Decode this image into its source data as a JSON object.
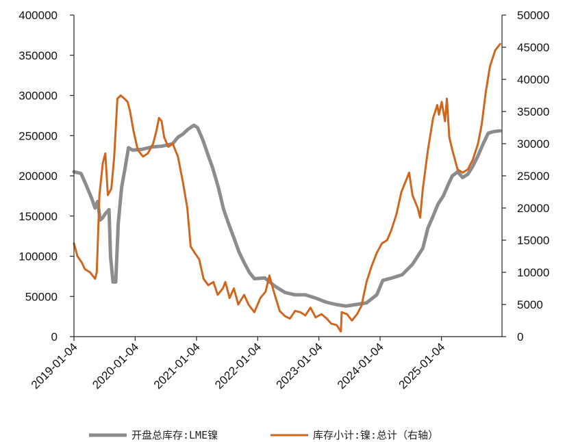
{
  "chart_data": {
    "type": "line",
    "x_range": [
      "2019-01-04",
      "2025-12-31"
    ],
    "x_ticks": [
      "2019-01-04",
      "2020-01-04",
      "2021-01-04",
      "2022-01-04",
      "2023-01-04",
      "2024-01-04",
      "2025-01-04"
    ],
    "y_left": {
      "min": 0,
      "max": 400000,
      "ticks": [
        "0",
        "50000",
        "100000",
        "150000",
        "200000",
        "250000",
        "300000",
        "350000",
        "400000"
      ]
    },
    "y_right": {
      "min": 0,
      "max": 50000,
      "ticks": [
        "0",
        "5000",
        "10000",
        "15000",
        "20000",
        "25000",
        "30000",
        "35000",
        "40000",
        "45000",
        "50000"
      ]
    },
    "grid": false,
    "legend_position": "bottom",
    "series": [
      {
        "name": "开盘总库存:LME镍",
        "axis": "left",
        "color": "#8c8c8c",
        "points": [
          [
            "2019-01-04",
            205000
          ],
          [
            "2019-02-15",
            203000
          ],
          [
            "2019-03-15",
            190000
          ],
          [
            "2019-04-20",
            172000
          ],
          [
            "2019-05-10",
            160000
          ],
          [
            "2019-05-25",
            168000
          ],
          [
            "2019-06-10",
            145000
          ],
          [
            "2019-06-25",
            148000
          ],
          [
            "2019-07-10",
            153000
          ],
          [
            "2019-08-01",
            158000
          ],
          [
            "2019-08-10",
            100000
          ],
          [
            "2019-08-25",
            68000
          ],
          [
            "2019-09-10",
            68000
          ],
          [
            "2019-09-25",
            140000
          ],
          [
            "2019-10-15",
            185000
          ],
          [
            "2019-11-05",
            210000
          ],
          [
            "2019-11-25",
            235000
          ],
          [
            "2019-12-20",
            232000
          ],
          [
            "2020-02-15",
            233000
          ],
          [
            "2020-04-15",
            236000
          ],
          [
            "2020-06-15",
            237000
          ],
          [
            "2020-08-15",
            240000
          ],
          [
            "2020-09-15",
            248000
          ],
          [
            "2020-10-15",
            252000
          ],
          [
            "2020-11-15",
            258000
          ],
          [
            "2020-12-20",
            263000
          ],
          [
            "2021-01-10",
            260000
          ],
          [
            "2021-02-10",
            245000
          ],
          [
            "2021-03-10",
            228000
          ],
          [
            "2021-04-10",
            210000
          ],
          [
            "2021-05-15",
            185000
          ],
          [
            "2021-06-15",
            158000
          ],
          [
            "2021-07-15",
            140000
          ],
          [
            "2021-08-15",
            123000
          ],
          [
            "2021-09-15",
            105000
          ],
          [
            "2021-10-15",
            92000
          ],
          [
            "2021-11-15",
            80000
          ],
          [
            "2021-12-15",
            72000
          ],
          [
            "2022-02-15",
            73000
          ],
          [
            "2022-04-15",
            63000
          ],
          [
            "2022-06-15",
            55000
          ],
          [
            "2022-08-15",
            52000
          ],
          [
            "2022-10-15",
            52000
          ],
          [
            "2022-12-15",
            48000
          ],
          [
            "2023-02-15",
            43000
          ],
          [
            "2023-04-15",
            40000
          ],
          [
            "2023-06-15",
            38000
          ],
          [
            "2023-08-15",
            40000
          ],
          [
            "2023-10-15",
            42000
          ],
          [
            "2023-12-15",
            52000
          ],
          [
            "2024-01-20",
            70000
          ],
          [
            "2024-03-15",
            73000
          ],
          [
            "2024-05-15",
            77000
          ],
          [
            "2024-07-15",
            90000
          ],
          [
            "2024-09-15",
            110000
          ],
          [
            "2024-10-15",
            135000
          ],
          [
            "2024-11-15",
            150000
          ],
          [
            "2024-12-15",
            165000
          ],
          [
            "2025-01-15",
            175000
          ],
          [
            "2025-02-15",
            190000
          ],
          [
            "2025-03-10",
            200000
          ],
          [
            "2025-04-10",
            205000
          ],
          [
            "2025-05-10",
            198000
          ],
          [
            "2025-06-10",
            202000
          ],
          [
            "2025-07-10",
            212000
          ],
          [
            "2025-08-10",
            225000
          ],
          [
            "2025-09-10",
            240000
          ],
          [
            "2025-10-10",
            253000
          ],
          [
            "2025-11-10",
            255000
          ],
          [
            "2025-12-20",
            256000
          ]
        ]
      },
      {
        "name": "库存小计:镍:总计（右轴）",
        "axis": "right",
        "color": "#d0661e",
        "points": [
          [
            "2019-01-04",
            14500
          ],
          [
            "2019-01-25",
            12500
          ],
          [
            "2019-02-20",
            11500
          ],
          [
            "2019-03-10",
            10500
          ],
          [
            "2019-04-10",
            10000
          ],
          [
            "2019-04-25",
            9500
          ],
          [
            "2019-05-10",
            9000
          ],
          [
            "2019-05-20",
            10000
          ],
          [
            "2019-06-05",
            22000
          ],
          [
            "2019-06-25",
            27000
          ],
          [
            "2019-07-10",
            28500
          ],
          [
            "2019-07-25",
            22000
          ],
          [
            "2019-08-15",
            23000
          ],
          [
            "2019-09-01",
            28000
          ],
          [
            "2019-09-20",
            37000
          ],
          [
            "2019-10-10",
            37500
          ],
          [
            "2019-11-01",
            37000
          ],
          [
            "2019-11-20",
            36500
          ],
          [
            "2019-12-05",
            35000
          ],
          [
            "2019-12-25",
            32000
          ],
          [
            "2020-01-20",
            29000
          ],
          [
            "2020-02-20",
            28000
          ],
          [
            "2020-03-20",
            28500
          ],
          [
            "2020-04-20",
            30000
          ],
          [
            "2020-05-10",
            32000
          ],
          [
            "2020-05-25",
            34000
          ],
          [
            "2020-06-10",
            33500
          ],
          [
            "2020-06-25",
            31000
          ],
          [
            "2020-07-20",
            29500
          ],
          [
            "2020-08-15",
            30000
          ],
          [
            "2020-09-15",
            28000
          ],
          [
            "2020-10-15",
            24000
          ],
          [
            "2020-11-10",
            20000
          ],
          [
            "2020-11-30",
            14000
          ],
          [
            "2020-12-25",
            13000
          ],
          [
            "2021-01-20",
            12000
          ],
          [
            "2021-02-15",
            9000
          ],
          [
            "2021-03-15",
            8000
          ],
          [
            "2021-04-15",
            8500
          ],
          [
            "2021-05-10",
            6500
          ],
          [
            "2021-06-10",
            7500
          ],
          [
            "2021-06-25",
            8500
          ],
          [
            "2021-07-20",
            6000
          ],
          [
            "2021-08-15",
            7500
          ],
          [
            "2021-09-10",
            5000
          ],
          [
            "2021-10-15",
            6500
          ],
          [
            "2021-11-10",
            5000
          ],
          [
            "2021-12-15",
            3800
          ],
          [
            "2022-01-20",
            6000
          ],
          [
            "2022-02-20",
            7000
          ],
          [
            "2022-03-15",
            9500
          ],
          [
            "2022-04-10",
            7000
          ],
          [
            "2022-05-15",
            4000
          ],
          [
            "2022-06-15",
            3200
          ],
          [
            "2022-07-15",
            2800
          ],
          [
            "2022-08-15",
            4000
          ],
          [
            "2022-09-15",
            3800
          ],
          [
            "2022-10-15",
            3300
          ],
          [
            "2022-11-15",
            4500
          ],
          [
            "2022-12-15",
            3000
          ],
          [
            "2023-01-20",
            3500
          ],
          [
            "2023-02-20",
            2800
          ],
          [
            "2023-03-20",
            2000
          ],
          [
            "2023-04-20",
            1800
          ],
          [
            "2023-05-15",
            800
          ],
          [
            "2023-05-20",
            3800
          ],
          [
            "2023-06-20",
            3500
          ],
          [
            "2023-07-20",
            2500
          ],
          [
            "2023-08-20",
            3500
          ],
          [
            "2023-09-15",
            4800
          ],
          [
            "2023-10-15",
            8500
          ],
          [
            "2023-11-15",
            11000
          ],
          [
            "2023-12-15",
            13000
          ],
          [
            "2024-01-15",
            14500
          ],
          [
            "2024-02-15",
            15000
          ],
          [
            "2024-03-10",
            16500
          ],
          [
            "2024-04-10",
            19000
          ],
          [
            "2024-05-10",
            22500
          ],
          [
            "2024-06-10",
            24500
          ],
          [
            "2024-06-25",
            25500
          ],
          [
            "2024-07-15",
            22000
          ],
          [
            "2024-08-15",
            20000
          ],
          [
            "2024-08-30",
            18500
          ],
          [
            "2024-09-15",
            23000
          ],
          [
            "2024-10-15",
            29000
          ],
          [
            "2024-11-15",
            34000
          ],
          [
            "2024-12-10",
            36000
          ],
          [
            "2024-12-20",
            34500
          ],
          [
            "2025-01-05",
            36500
          ],
          [
            "2025-01-25",
            33500
          ],
          [
            "2025-02-05",
            37000
          ],
          [
            "2025-02-20",
            31000
          ],
          [
            "2025-03-10",
            29000
          ],
          [
            "2025-04-10",
            26000
          ],
          [
            "2025-05-10",
            25500
          ],
          [
            "2025-06-10",
            26000
          ],
          [
            "2025-07-10",
            27500
          ],
          [
            "2025-08-10",
            30000
          ],
          [
            "2025-09-01",
            33000
          ],
          [
            "2025-09-25",
            38000
          ],
          [
            "2025-10-20",
            42000
          ],
          [
            "2025-11-20",
            44500
          ],
          [
            "2025-12-20",
            45500
          ]
        ]
      }
    ]
  }
}
